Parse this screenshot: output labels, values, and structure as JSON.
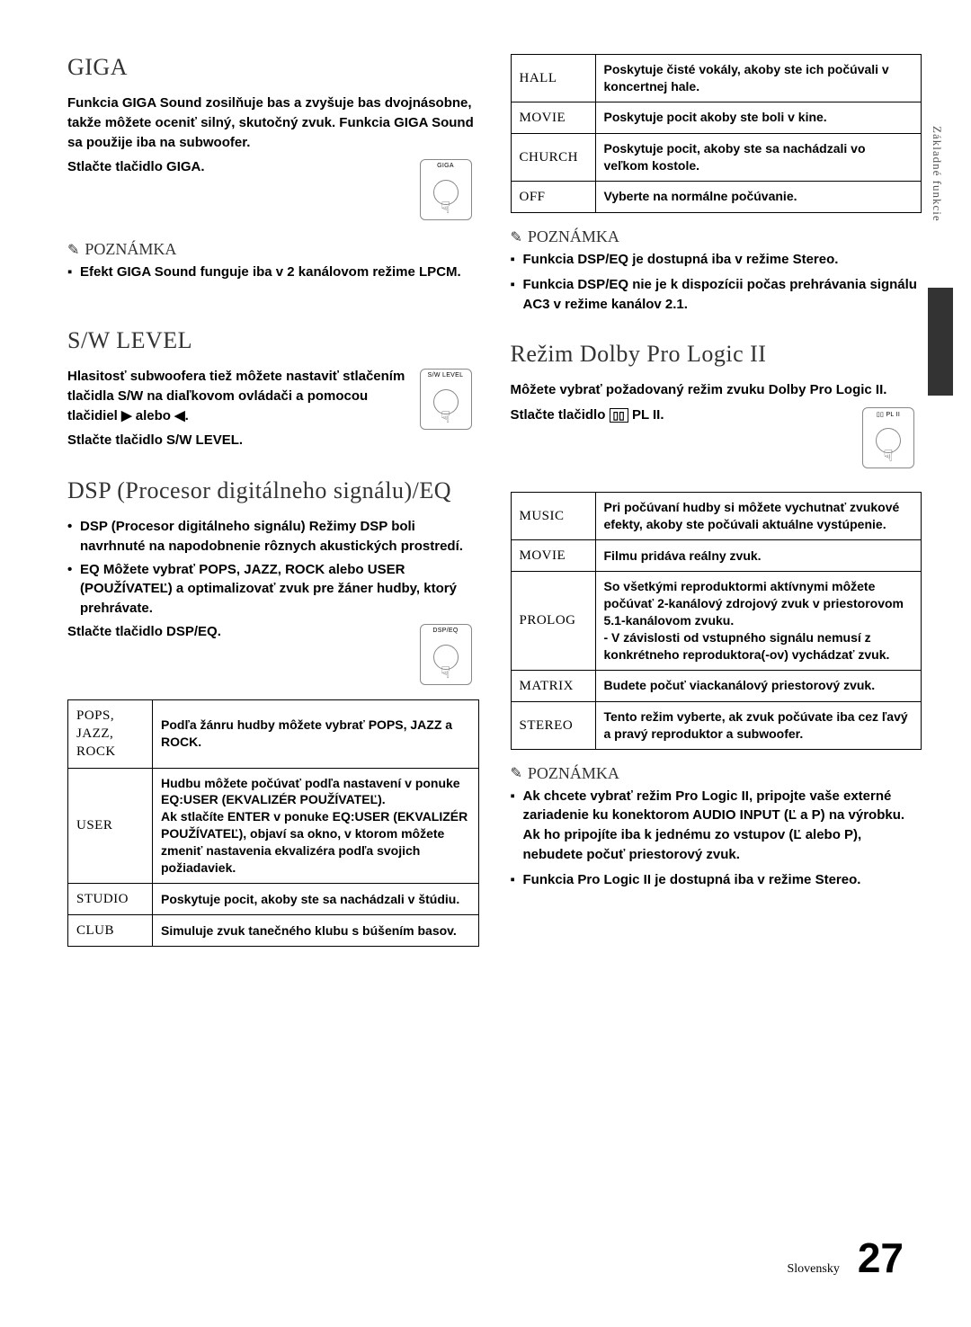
{
  "left": {
    "giga": {
      "heading": "GIGA",
      "p1": "Funkcia GIGA Sound zosilňuje bas a zvyšuje bas dvojnásobne, takže môžete oceniť silný, skutočný zvuk. Funkcia GIGA Sound sa použije iba na subwoofer.",
      "press": "Stlačte tlačidlo GIGA.",
      "remote_label": "GIGA",
      "note_head": "POZNÁMKA",
      "note1": "Efekt GIGA Sound funguje iba v 2 kanálovom režime LPCM."
    },
    "sw": {
      "heading": "S/W LEVEL",
      "p1": "Hlasitosť subwoofera tiež môžete nastaviť stlačením tlačidla S/W na diaľkovom ovládači a pomocou tlačidiel ▶ alebo ◀.",
      "press": "Stlačte tlačidlo S/W LEVEL.",
      "remote_label": "S/W LEVEL"
    },
    "dsp": {
      "heading": "DSP (Procesor digitálneho signálu)/EQ",
      "bullet1": "DSP (Procesor digitálneho signálu) Režimy DSP boli navrhnuté na napodobnenie rôznych akustických prostredí.",
      "bullet2": "EQ Môžete vybrať POPS, JAZZ, ROCK alebo USER (POUŽÍVATEĽ) a optimalizovať zvuk pre žáner hudby, ktorý prehrávate.",
      "press": "Stlačte tlačidlo DSP/EQ.",
      "remote_label": "DSP/EQ",
      "rows": [
        {
          "k": "POPS, JAZZ, ROCK",
          "v": "Podľa žánru hudby môžete vybrať POPS, JAZZ a ROCK."
        },
        {
          "k": "USER",
          "v": "Hudbu môžete počúvať podľa nastavení v ponuke EQ:USER (EKVALIZÉR POUŽÍVATEĽ).\nAk stlačíte ENTER v ponuke EQ:USER (EKVALIZÉR POUŽÍVATEĽ), objaví sa okno, v ktorom môžete zmeniť nastavenia ekvalizéra podľa svojich požiadaviek."
        },
        {
          "k": "STUDIO",
          "v": "Poskytuje pocit, akoby ste sa nachádzali v štúdiu."
        },
        {
          "k": "CLUB",
          "v": "Simuluje zvuk tanečného klubu s búšením basov."
        }
      ]
    }
  },
  "right": {
    "top_rows": [
      {
        "k": "HALL",
        "v": "Poskytuje čisté vokály, akoby ste ich počúvali v koncertnej hale."
      },
      {
        "k": "MOVIE",
        "v": "Poskytuje pocit akoby ste boli v kine."
      },
      {
        "k": "CHURCH",
        "v": "Poskytuje pocit, akoby ste sa nachádzali vo veľkom kostole."
      },
      {
        "k": "OFF",
        "v": "Vyberte na normálne počúvanie."
      }
    ],
    "note_head": "POZNÁMKA",
    "top_notes": [
      "Funkcia DSP/EQ je dostupná iba v režime Stereo.",
      "Funkcia DSP/EQ nie je k dispozícii počas prehrávania signálu AC3 v režime kanálov 2.1."
    ],
    "dolby": {
      "heading": "Režim Dolby Pro Logic II",
      "p1": "Môžete vybrať požadovaný režim zvuku Dolby Pro Logic II.",
      "press": "Stlačte tlačidlo ",
      "press_btn": "PL II",
      "remote_label": "PL II",
      "rows": [
        {
          "k": "MUSIC",
          "v": "Pri počúvaní hudby si môžete vychutnať zvukové efekty, akoby ste počúvali aktuálne vystúpenie."
        },
        {
          "k": "MOVIE",
          "v": "Filmu pridáva reálny zvuk."
        },
        {
          "k": "PROLOG",
          "v": "So všetkými reproduktormi aktívnymi môžete počúvať 2-kanálový zdrojový zvuk v priestorovom 5.1-kanálovom zvuku.\n- V závislosti od vstupného signálu nemusí z konkrétneho reproduktora(-ov) vychádzať zvuk."
        },
        {
          "k": "MATRIX",
          "v": "Budete počuť viackanálový priestorový zvuk."
        },
        {
          "k": "STEREO",
          "v": "Tento režim vyberte, ak zvuk počúvate iba cez ľavý a pravý reproduktor a subwoofer."
        }
      ],
      "note_head2": "POZNÁMKA",
      "notes2": [
        "Ak chcete vybrať režim Pro Logic II, pripojte vaše externé zariadenie ku konektorom AUDIO INPUT (Ľ a P) na výrobku. Ak ho pripojíte iba k jednému zo vstupov (Ľ alebo P), nebudete počuť priestorový zvuk.",
        "Funkcia Pro Logic II je dostupná iba v režime Stereo."
      ]
    }
  },
  "footer": {
    "label": "Slovensky",
    "page": "27"
  },
  "side_tab": "Základné funkcie"
}
